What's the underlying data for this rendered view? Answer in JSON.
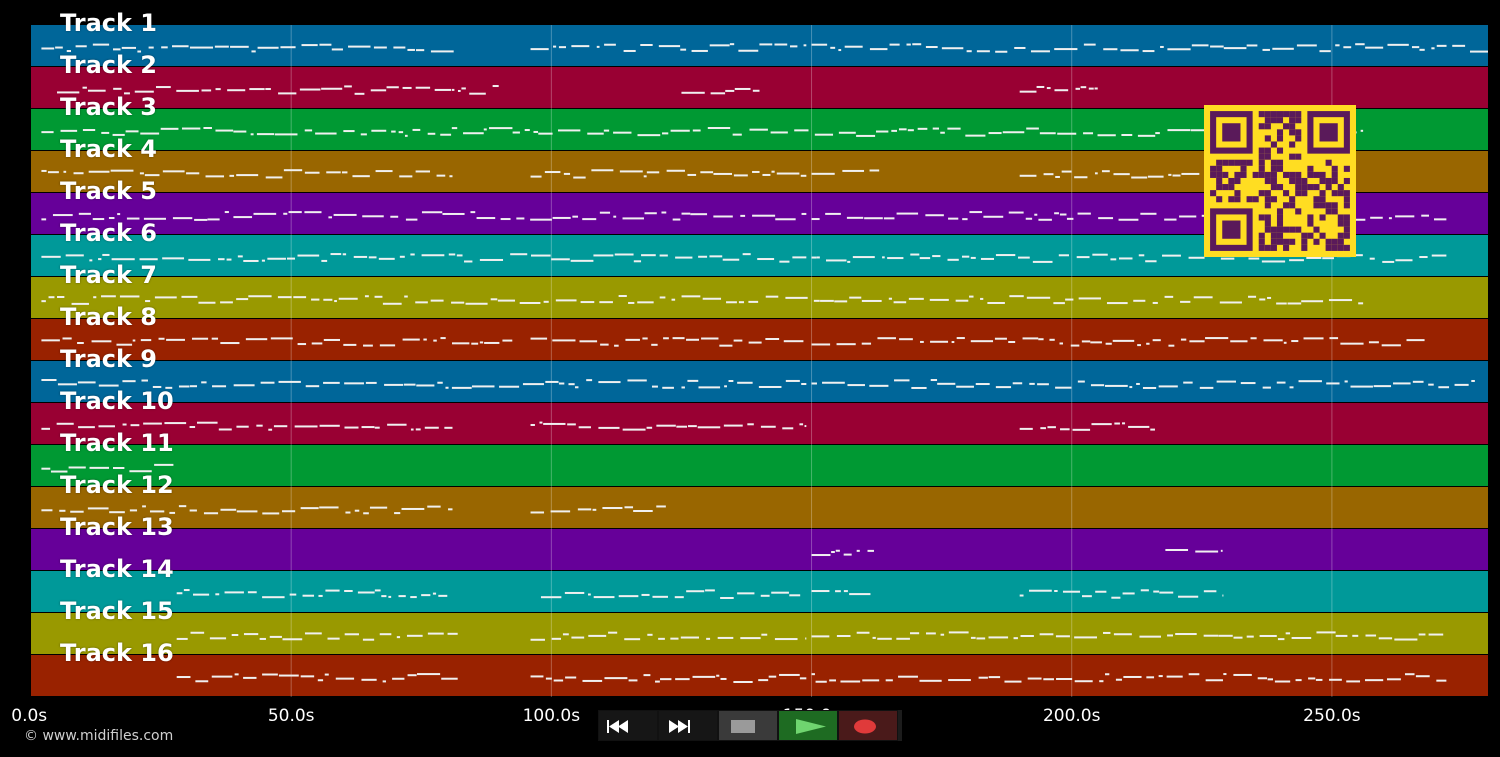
{
  "tracks": [
    {
      "label": "Track 1",
      "color": "#006699"
    },
    {
      "label": "Track 2",
      "color": "#990033"
    },
    {
      "label": "Track 3",
      "color": "#009933"
    },
    {
      "label": "Track 4",
      "color": "#996600"
    },
    {
      "label": "Track 5",
      "color": "#660099"
    },
    {
      "label": "Track 6",
      "color": "#009999"
    },
    {
      "label": "Track 7",
      "color": "#999900"
    },
    {
      "label": "Track 8",
      "color": "#992200"
    },
    {
      "label": "Track 9",
      "color": "#006699"
    },
    {
      "label": "Track 10",
      "color": "#990033"
    },
    {
      "label": "Track 11",
      "color": "#009933"
    },
    {
      "label": "Track 12",
      "color": "#996600"
    },
    {
      "label": "Track 13",
      "color": "#660099"
    },
    {
      "label": "Track 14",
      "color": "#009999"
    },
    {
      "label": "Track 15",
      "color": "#999900"
    },
    {
      "label": "Track 16",
      "color": "#992200"
    }
  ],
  "timeline": {
    "ticks": [
      "0.0s",
      "50.0s",
      "100.0s",
      "150.0s",
      "200.0s",
      "250.0s"
    ],
    "tick_values": [
      0,
      50,
      100,
      150,
      200,
      250
    ],
    "range": [
      0,
      280
    ]
  },
  "transport": {
    "buttons": [
      {
        "name": "rewind-button",
        "icon": "rewind-icon"
      },
      {
        "name": "fast-forward-button",
        "icon": "fast-forward-icon"
      },
      {
        "name": "stop-button",
        "icon": "stop-icon"
      },
      {
        "name": "play-button",
        "icon": "play-icon"
      },
      {
        "name": "record-button",
        "icon": "record-icon"
      }
    ]
  },
  "footer": {
    "copyright": "© www.midifiles.com"
  },
  "qr": {
    "color": "#5a1a5a",
    "background": "#ffdd22"
  }
}
